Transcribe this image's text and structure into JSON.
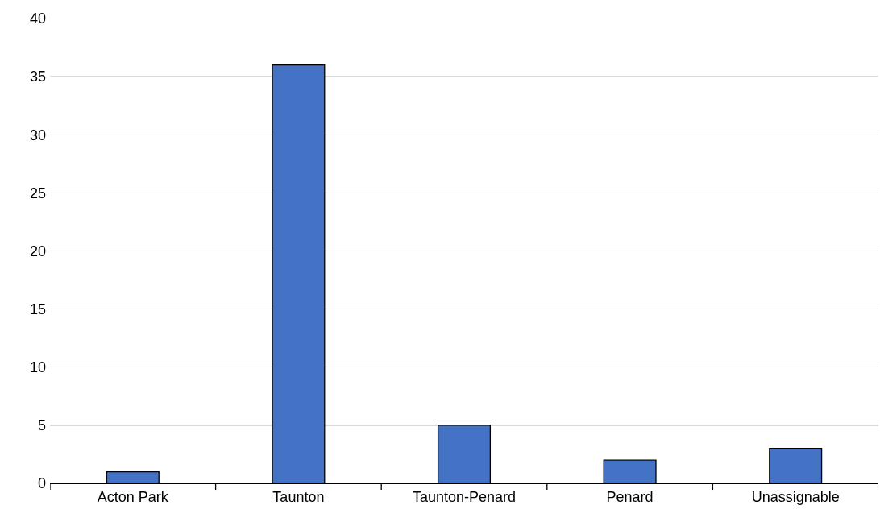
{
  "chart_data": {
    "type": "bar",
    "categories": [
      "Acton Park",
      "Taunton",
      "Taunton-Penard",
      "Penard",
      "Unassignable"
    ],
    "values": [
      1,
      36,
      5,
      2,
      3
    ],
    "color": "#4472c4",
    "ylim": [
      0,
      40
    ],
    "yticks": [
      0,
      5,
      10,
      15,
      20,
      25,
      30,
      35,
      40
    ],
    "grid": "y",
    "legend": false
  }
}
